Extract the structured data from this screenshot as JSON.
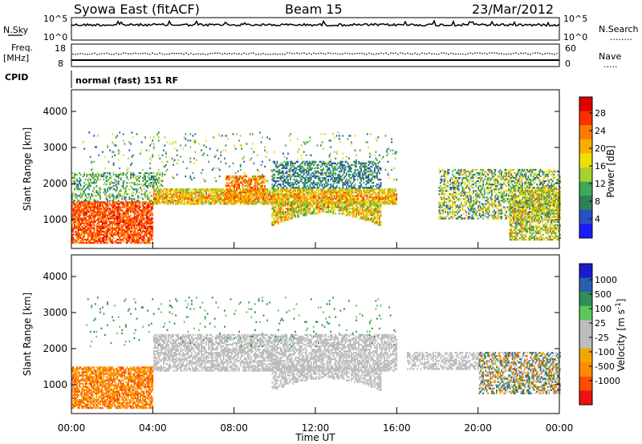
{
  "header": {
    "title": "Syowa East (fitACF)",
    "beam": "Beam 15",
    "date": "23/Mar/2012"
  },
  "noise_panel": {
    "left_label": "N.Sky",
    "left_ticks": [
      "10^5",
      "10^0"
    ],
    "right_label": "N.Search",
    "right_ticks": [
      "10^5",
      "10^0"
    ],
    "right_dots": "........"
  },
  "freq_panel": {
    "left_label_line1": "Freq.",
    "left_label_line2": "[MHz]",
    "left_ticks": [
      "18",
      "8"
    ],
    "right_ticks": [
      "60",
      "0"
    ],
    "right_label": "Nave",
    "right_dots": "....."
  },
  "cpid": {
    "label": "CPID",
    "value": "normal (fast) 151 RF"
  },
  "colors": {
    "power": [
      "#1a1aff",
      "#2a4fc4",
      "#2f7f5a",
      "#3fa85a",
      "#a8d030",
      "#f0e000",
      "#f4b000",
      "#ff7a00",
      "#ff3000",
      "#e00000"
    ],
    "velocity": [
      "#ee1111",
      "#ff4d00",
      "#ff8c00",
      "#f0a800",
      "#bdbdbd",
      "#bdbdbd",
      "#5cc85c",
      "#2f8f5a",
      "#2a5fb0",
      "#1a1acc"
    ]
  },
  "chart_data": [
    {
      "type": "heatmap",
      "name": "power",
      "ylabel": "Slant Range [km]",
      "xlabel": "",
      "xlim": [
        0,
        24
      ],
      "ylim": [
        200,
        4600
      ],
      "yticks": [
        "1000",
        "2000",
        "3000",
        "4000"
      ],
      "colorbar": {
        "label": "Power [dB]",
        "range": [
          0,
          32
        ],
        "ticks": [
          "4",
          "8",
          "12",
          "16",
          "20",
          "24",
          "28"
        ]
      },
      "features": [
        {
          "t": [
            0.0,
            4.0
          ],
          "r": [
            300,
            1500
          ],
          "level": "24-30 dB"
        },
        {
          "t": [
            4.0,
            16.0
          ],
          "r": [
            1400,
            1800
          ],
          "level": "12-30 dB"
        },
        {
          "t": [
            10.0,
            15.0
          ],
          "r": [
            800,
            1500
          ],
          "level": "8-28 dB"
        },
        {
          "t": [
            18.0,
            24.0
          ],
          "r": [
            1000,
            2400
          ],
          "level": "4-24 dB"
        }
      ]
    },
    {
      "type": "heatmap",
      "name": "velocity",
      "ylabel": "Slant Range [km]",
      "xlabel": "Time UT",
      "xlim": [
        0,
        24
      ],
      "ylim": [
        200,
        4600
      ],
      "xticks": [
        "00:00",
        "04:00",
        "08:00",
        "12:00",
        "16:00",
        "20:00",
        "00:00"
      ],
      "yticks": [
        "1000",
        "2000",
        "3000",
        "4000"
      ],
      "colorbar": {
        "label": "Velocity [m s^-1]",
        "range": [
          -1200,
          1200
        ],
        "ticks": [
          "1000",
          "500",
          "100",
          "25",
          "-25",
          "-100",
          "-500",
          "-1000"
        ]
      },
      "features": [
        {
          "t": [
            0.0,
            4.0
          ],
          "r": [
            300,
            1500
          ],
          "level": "-100 to -1000 m/s"
        },
        {
          "t": [
            4.0,
            16.0
          ],
          "r": [
            1300,
            2400
          ],
          "level": "-25 to 25 m/s (ground scatter)"
        },
        {
          "t": [
            20.0,
            24.0
          ],
          "r": [
            700,
            1900
          ],
          "level": "-500 to 1000 m/s"
        }
      ]
    }
  ]
}
